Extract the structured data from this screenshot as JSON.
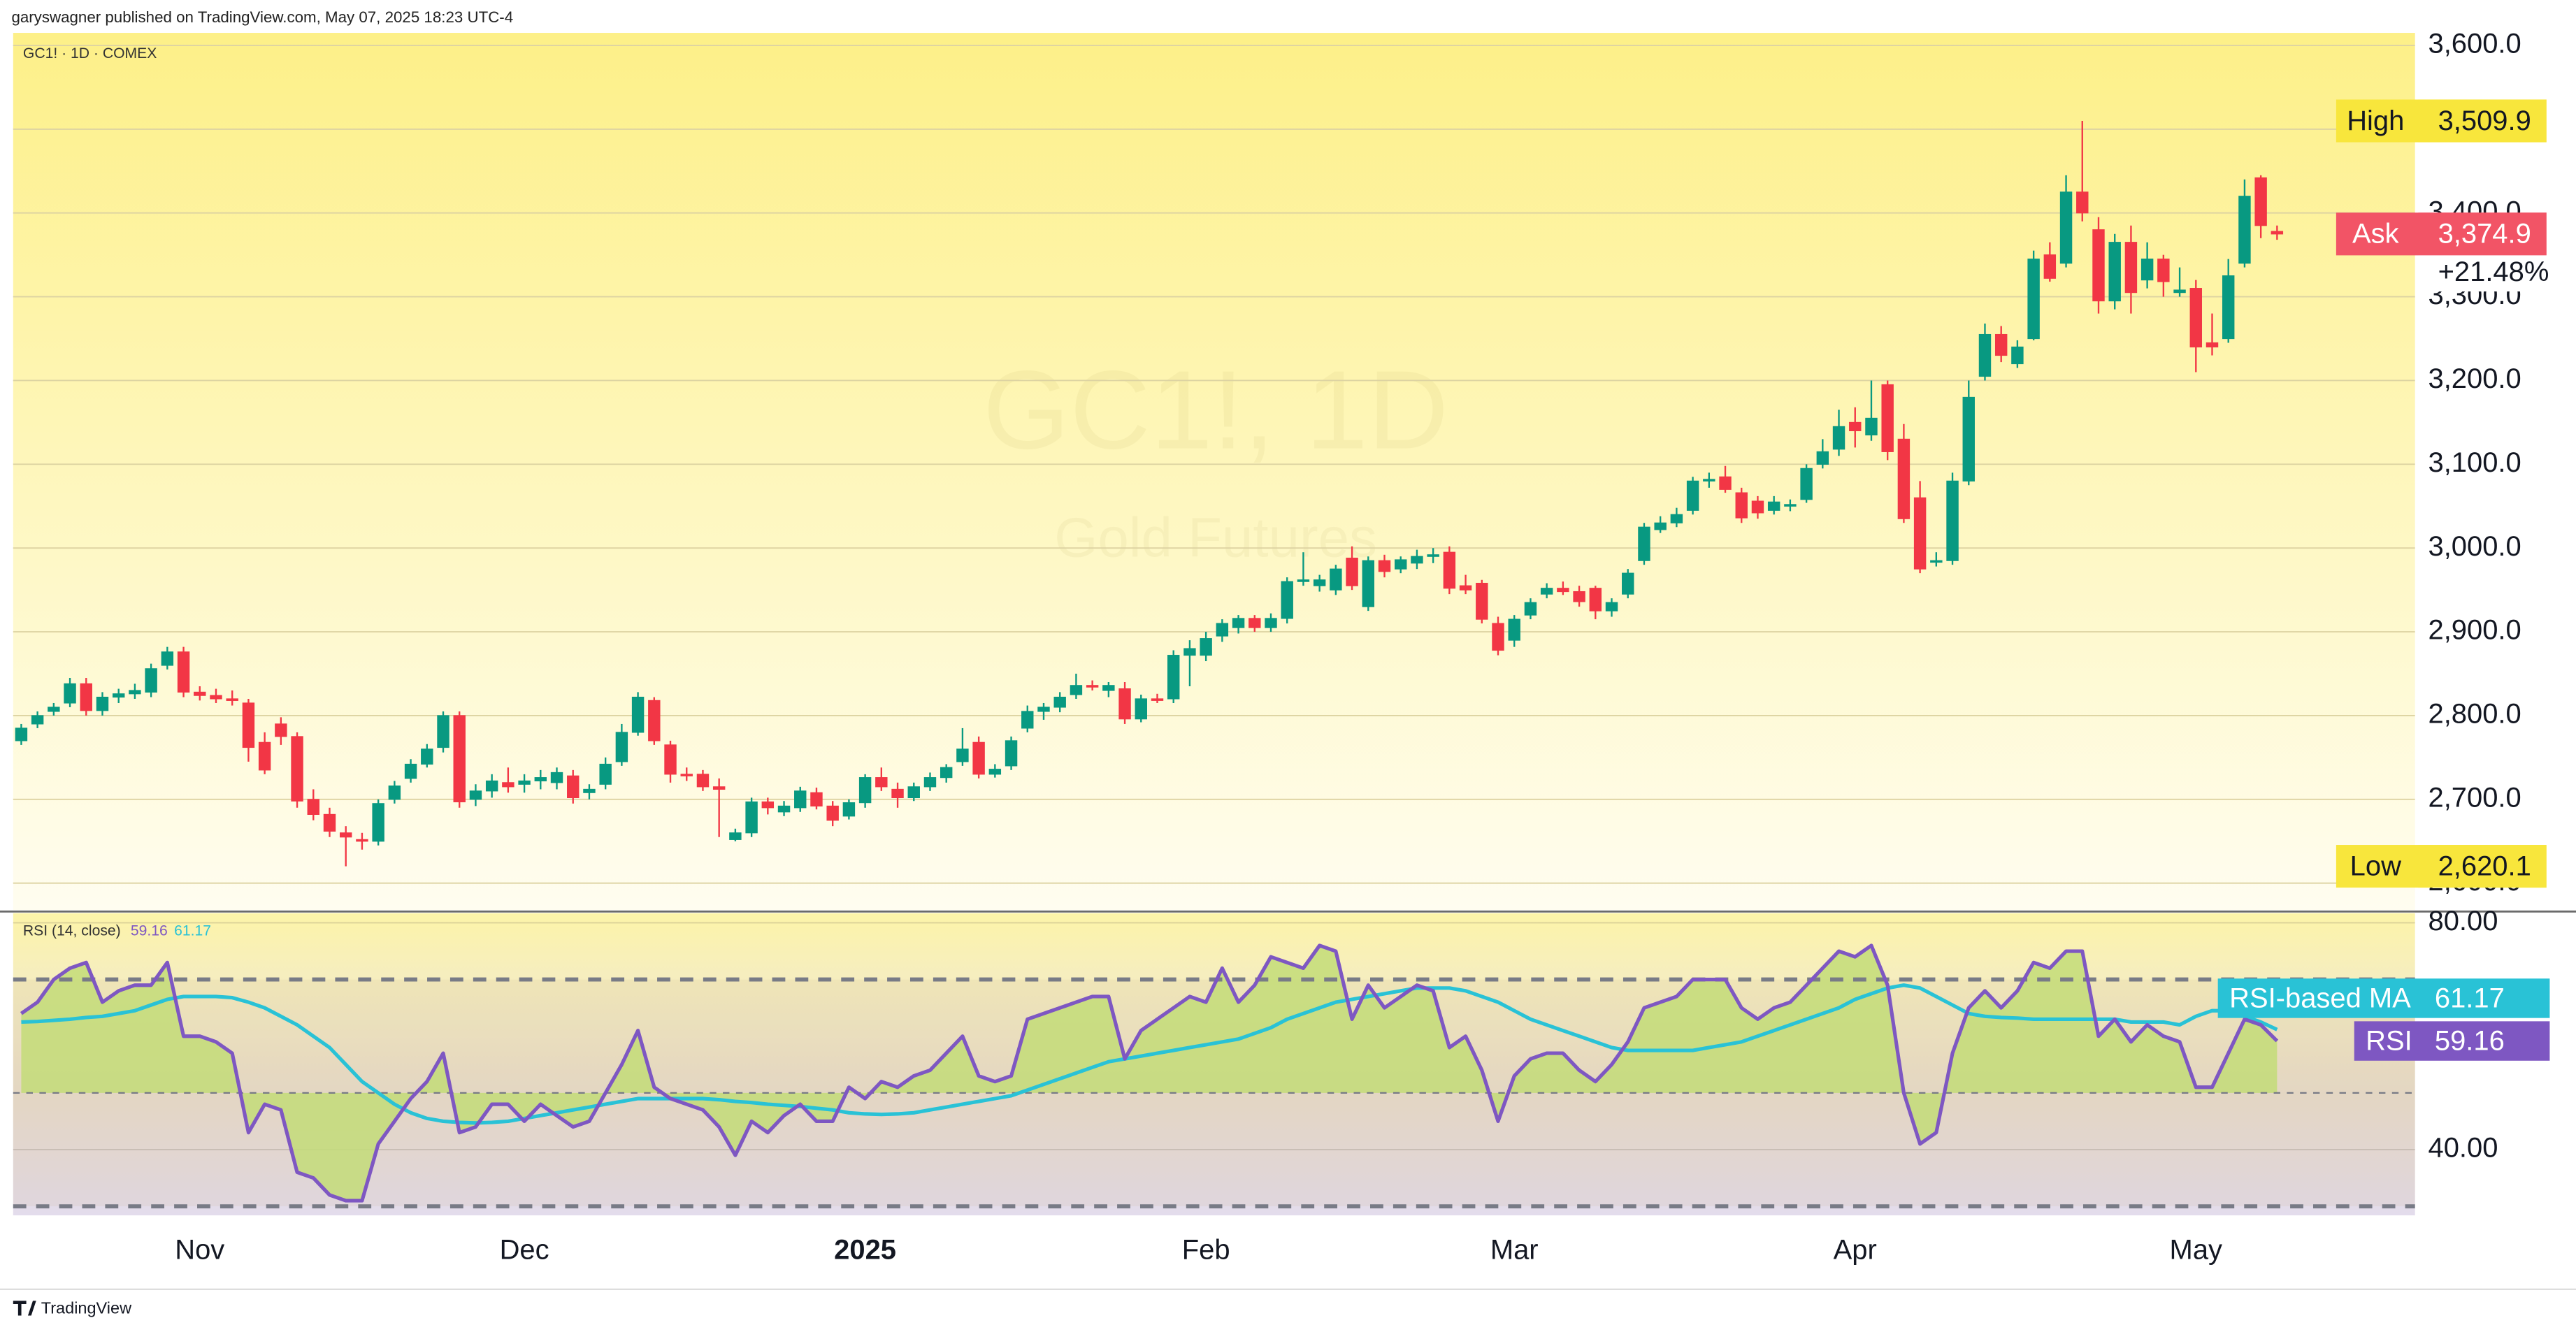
{
  "header": "garyswagner published on TradingView.com, May 07, 2025 18:23 UTC-4",
  "footer": "TradingView",
  "chart_data": [
    {
      "type": "candlestick",
      "title": "GC1! · 1D · COMEX",
      "watermark": "GC1!, 1D",
      "watermark_subtitle": "Gold Futures",
      "up_color": "#089981",
      "down_color": "#f23645",
      "xlim": [
        -0.5,
        147.5
      ],
      "xticks": [
        {
          "value": 11,
          "label": "Nov"
        },
        {
          "value": 31,
          "label": "Dec"
        },
        {
          "value": 52,
          "label": "2025"
        },
        {
          "value": 73,
          "label": "Feb"
        },
        {
          "value": 92,
          "label": "Mar"
        },
        {
          "value": 113,
          "label": "Apr"
        },
        {
          "value": 134,
          "label": "May"
        }
      ],
      "ylim": [
        2570,
        3615
      ],
      "yticks": [
        {
          "value": 2600,
          "label": "2,600.0"
        },
        {
          "value": 2700,
          "label": "2,700.0"
        },
        {
          "value": 2800,
          "label": "2,800.0"
        },
        {
          "value": 2900,
          "label": "2,900.0"
        },
        {
          "value": 3000,
          "label": "3,000.0"
        },
        {
          "value": 3100,
          "label": "3,100.0"
        },
        {
          "value": 3200,
          "label": "3,200.0"
        },
        {
          "value": 3300,
          "label": "3,300.0"
        },
        {
          "value": 3400,
          "label": "3,400.0"
        },
        {
          "value": 3500,
          "label": "3,500.0"
        },
        {
          "value": 3600,
          "label": "3,600.0"
        }
      ],
      "grid": true,
      "high_marker": {
        "label": "High",
        "value": 3509.9,
        "value_label": "3,509.9",
        "color": "#f8e63c"
      },
      "low_marker": {
        "label": "Low",
        "value": 2620.1,
        "value_label": "2,620.1",
        "color": "#f8e63c"
      },
      "last_marker": {
        "label": "Ask",
        "value": 3374.9,
        "value_label": "3,374.9",
        "change": 21.48,
        "change_label": "+21.48%",
        "color": "#f25466"
      },
      "open": [
        2770,
        2790,
        2805,
        2815,
        2838,
        2806,
        2822,
        2826,
        2828,
        2860,
        2876,
        2828,
        2824,
        2820,
        2815,
        2768,
        2790,
        2775,
        2700,
        2682,
        2660,
        2652,
        2650,
        2700,
        2725,
        2742,
        2762,
        2800,
        2700,
        2710,
        2720,
        2718,
        2722,
        2720,
        2728,
        2708,
        2718,
        2745,
        2780,
        2818,
        2765,
        2730,
        2730,
        2715,
        2652,
        2660,
        2697,
        2685,
        2690,
        2708,
        2692,
        2680,
        2696,
        2726,
        2712,
        2702,
        2715,
        2726,
        2745,
        2768,
        2730,
        2740,
        2785,
        2805,
        2810,
        2825,
        2836,
        2830,
        2832,
        2796,
        2820,
        2820,
        2872,
        2872,
        2895,
        2905,
        2916,
        2905,
        2916,
        2960,
        2955,
        2950,
        2988,
        2930,
        2985,
        2975,
        2982,
        2990,
        2995,
        2955,
        2958,
        2910,
        2890,
        2920,
        2945,
        2952,
        2948,
        2952,
        2925,
        2945,
        2985,
        3022,
        3030,
        3045,
        3080,
        3085,
        3066,
        3056,
        3045,
        3050,
        3058,
        3100,
        3118,
        3150,
        3135,
        3195,
        3130,
        3060,
        2985,
        2985,
        3080,
        3205,
        3255,
        3220,
        3250,
        3350,
        3340,
        3425,
        3380,
        3295,
        3365,
        3320,
        3345,
        3305,
        3310,
        3245,
        3250,
        3340,
        3442,
        3378
      ],
      "high": [
        2790,
        2805,
        2815,
        2845,
        2845,
        2828,
        2832,
        2838,
        2862,
        2882,
        2882,
        2835,
        2832,
        2830,
        2820,
        2780,
        2798,
        2780,
        2712,
        2690,
        2668,
        2660,
        2700,
        2722,
        2748,
        2766,
        2805,
        2805,
        2718,
        2730,
        2738,
        2730,
        2735,
        2738,
        2735,
        2718,
        2750,
        2790,
        2828,
        2822,
        2770,
        2738,
        2735,
        2725,
        2665,
        2702,
        2702,
        2698,
        2715,
        2714,
        2698,
        2700,
        2730,
        2738,
        2720,
        2720,
        2732,
        2742,
        2785,
        2775,
        2742,
        2775,
        2812,
        2815,
        2828,
        2850,
        2842,
        2840,
        2840,
        2825,
        2826,
        2878,
        2890,
        2900,
        2915,
        2920,
        2920,
        2922,
        2965,
        2995,
        2968,
        2980,
        3002,
        2990,
        2992,
        2990,
        2998,
        3000,
        3002,
        2968,
        2962,
        2918,
        2920,
        2940,
        2958,
        2960,
        2955,
        2955,
        2940,
        2975,
        3030,
        3038,
        3048,
        3085,
        3090,
        3098,
        3072,
        3062,
        3062,
        3058,
        3100,
        3130,
        3165,
        3168,
        3200,
        3200,
        3148,
        3080,
        2995,
        3090,
        3200,
        3268,
        3265,
        3248,
        3355,
        3365,
        3445,
        3509.9,
        3395,
        3375,
        3385,
        3365,
        3350,
        3335,
        3320,
        3280,
        3345,
        3440,
        3445,
        3385
      ],
      "low": [
        2765,
        2785,
        2800,
        2810,
        2800,
        2800,
        2815,
        2820,
        2822,
        2855,
        2822,
        2818,
        2815,
        2812,
        2745,
        2730,
        2765,
        2690,
        2675,
        2655,
        2620.1,
        2640,
        2645,
        2695,
        2720,
        2738,
        2756,
        2690,
        2692,
        2702,
        2708,
        2708,
        2712,
        2712,
        2695,
        2700,
        2712,
        2740,
        2776,
        2765,
        2720,
        2722,
        2710,
        2655,
        2650,
        2655,
        2682,
        2680,
        2685,
        2688,
        2668,
        2676,
        2690,
        2710,
        2690,
        2698,
        2710,
        2720,
        2740,
        2725,
        2726,
        2735,
        2780,
        2795,
        2804,
        2820,
        2830,
        2822,
        2790,
        2792,
        2815,
        2815,
        2835,
        2865,
        2888,
        2898,
        2900,
        2900,
        2910,
        2955,
        2948,
        2944,
        2950,
        2925,
        2965,
        2970,
        2975,
        2982,
        2945,
        2945,
        2910,
        2872,
        2882,
        2915,
        2940,
        2944,
        2930,
        2915,
        2918,
        2940,
        2980,
        3018,
        3025,
        3040,
        3072,
        3066,
        3030,
        3035,
        3040,
        3044,
        3054,
        3095,
        3110,
        3120,
        3128,
        3105,
        3030,
        2970,
        2978,
        2980,
        3075,
        3200,
        3222,
        3215,
        3248,
        3318,
        3335,
        3390,
        3280,
        3285,
        3280,
        3310,
        3300,
        3300,
        3210,
        3230,
        3245,
        3335,
        3370,
        3368
      ],
      "close": [
        2785,
        2800,
        2810,
        2838,
        2806,
        2822,
        2826,
        2830,
        2856,
        2876,
        2828,
        2824,
        2820,
        2818,
        2762,
        2735,
        2775,
        2698,
        2682,
        2662,
        2655,
        2650,
        2695,
        2716,
        2742,
        2760,
        2800,
        2697,
        2710,
        2722,
        2715,
        2722,
        2726,
        2732,
        2702,
        2712,
        2742,
        2780,
        2822,
        2770,
        2730,
        2728,
        2715,
        2712,
        2660,
        2697,
        2690,
        2692,
        2710,
        2692,
        2675,
        2696,
        2726,
        2715,
        2702,
        2715,
        2726,
        2738,
        2760,
        2730,
        2736,
        2770,
        2805,
        2810,
        2822,
        2836,
        2834,
        2836,
        2796,
        2820,
        2819,
        2872,
        2880,
        2892,
        2910,
        2916,
        2905,
        2916,
        2960,
        2962,
        2962,
        2975,
        2955,
        2985,
        2972,
        2986,
        2990,
        2992,
        2952,
        2950,
        2915,
        2878,
        2915,
        2935,
        2952,
        2948,
        2936,
        2925,
        2935,
        2970,
        3025,
        3030,
        3040,
        3080,
        3082,
        3070,
        3036,
        3042,
        3055,
        3052,
        3095,
        3115,
        3145,
        3140,
        3155,
        3115,
        3035,
        2975,
        2985,
        3080,
        3180,
        3255,
        3230,
        3240,
        3345,
        3322,
        3425,
        3400,
        3295,
        3365,
        3305,
        3345,
        3318,
        3308,
        3240,
        3240,
        3325,
        3420,
        3385,
        3374.9
      ]
    },
    {
      "type": "line",
      "title": "RSI (14, close)",
      "xlim": [
        -0.5,
        147.5
      ],
      "ylim": [
        28.4,
        81.7
      ],
      "yticks": [
        {
          "value": 40,
          "label": "40.00"
        },
        {
          "value": 80,
          "label": "80.00"
        }
      ],
      "bands": [
        30,
        50,
        70
      ],
      "fill_color": "#c3dc78",
      "series": [
        {
          "name": "RSI",
          "color": "#7e57c2",
          "values": [
            64,
            66,
            70,
            72,
            73,
            66,
            68,
            69,
            69,
            73,
            60,
            60,
            59,
            57,
            43,
            48,
            47,
            36,
            35,
            32,
            31,
            31,
            41,
            45,
            49,
            52,
            57,
            43,
            44,
            48,
            48,
            45,
            48,
            46,
            44,
            45,
            50,
            55,
            61,
            51,
            49,
            48,
            47,
            44,
            39,
            45,
            43,
            46,
            48,
            45,
            45,
            51,
            49,
            52,
            51,
            53,
            54,
            57,
            60,
            53,
            52,
            53,
            63,
            64,
            65,
            66,
            67,
            67,
            56,
            61,
            63,
            65,
            67,
            66,
            72,
            66,
            69,
            74,
            73,
            72,
            76,
            75,
            63,
            69,
            65,
            67,
            69,
            68,
            58,
            60,
            54,
            45,
            53,
            56,
            57,
            57,
            54,
            52,
            55,
            59,
            65,
            66,
            67,
            70,
            70,
            70,
            65,
            63,
            65,
            66,
            69,
            72,
            75,
            74,
            76,
            69,
            50,
            41,
            43,
            57,
            65,
            68,
            65,
            68,
            73,
            72,
            75,
            75,
            60,
            63,
            59,
            62,
            60,
            59,
            51,
            51,
            57,
            63,
            62,
            59.16
          ]
        },
        {
          "name": "RSI-based MA",
          "color": "#29c2d6",
          "values": [
            62.5,
            62.6,
            62.8,
            63,
            63.3,
            63.5,
            64,
            64.5,
            65.5,
            66.5,
            67,
            67,
            67,
            66.8,
            66,
            65,
            63.5,
            62,
            60,
            58,
            55,
            52,
            50,
            48,
            46.5,
            45.5,
            45,
            44.8,
            44.7,
            44.8,
            45,
            45.5,
            46,
            46.5,
            47,
            47.5,
            48,
            48.5,
            49,
            49,
            49,
            49,
            49,
            48.8,
            48.5,
            48.3,
            48,
            47.8,
            47.6,
            47.3,
            47,
            46.5,
            46.3,
            46.2,
            46.3,
            46.5,
            47,
            47.5,
            48,
            48.5,
            49,
            49.5,
            50.5,
            51.5,
            52.5,
            53.5,
            54.5,
            55.5,
            56,
            56.5,
            57,
            57.5,
            58,
            58.5,
            59,
            59.5,
            60.5,
            61.5,
            63,
            64,
            65,
            66,
            66.5,
            67,
            67.5,
            68,
            68.5,
            68.5,
            68.5,
            68,
            67,
            66,
            64.5,
            63,
            62,
            61,
            60,
            59,
            58,
            57.5,
            57.5,
            57.5,
            57.5,
            57.5,
            58,
            58.5,
            59,
            60,
            61,
            62,
            63,
            64,
            65,
            66.5,
            67.5,
            68.5,
            69,
            68.5,
            67,
            65.5,
            64,
            63.5,
            63.3,
            63.2,
            63,
            63,
            63,
            63,
            63,
            63,
            62.5,
            62.5,
            62.5,
            62,
            63.5,
            64.5,
            64.5,
            63.5,
            62.5,
            61.17
          ]
        }
      ]
    }
  ]
}
